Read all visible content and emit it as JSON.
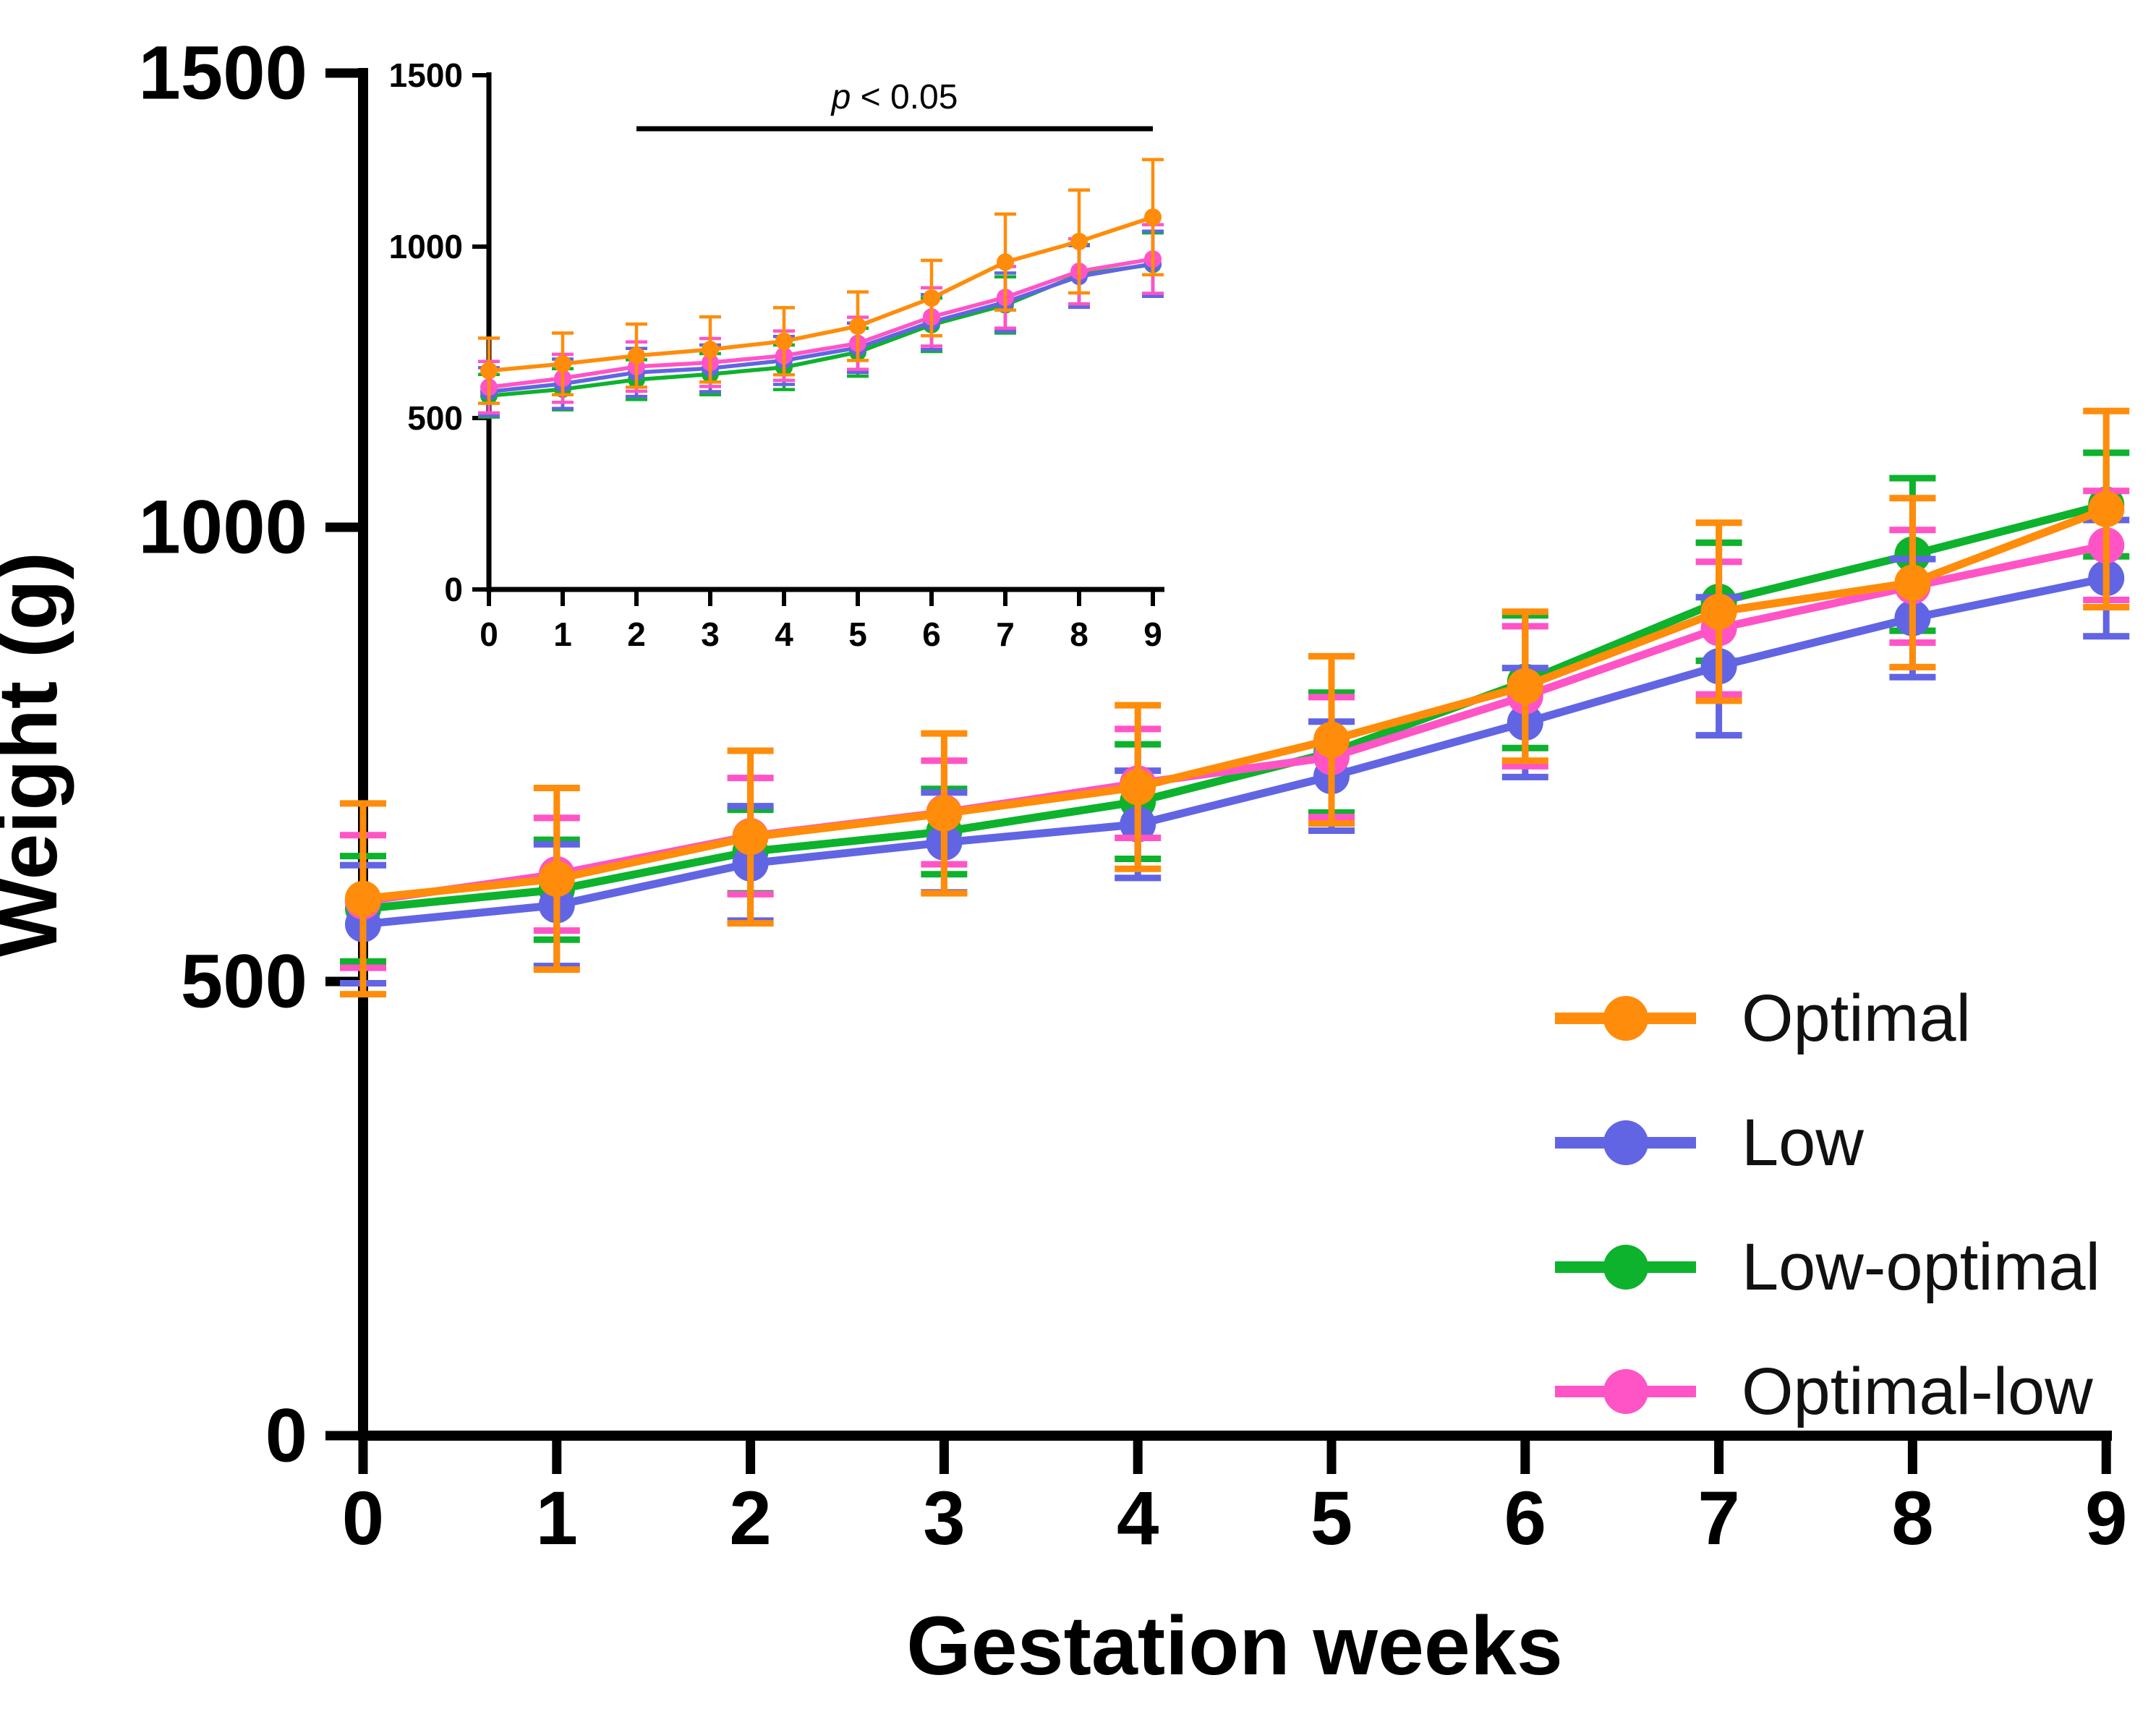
{
  "chart_data": {
    "type": "line",
    "title": "",
    "xlabel": "Gestation weeks",
    "ylabel": "Weight (g)",
    "x": [
      0,
      1,
      2,
      3,
      4,
      5,
      6,
      7,
      8,
      9
    ],
    "xticks": [
      0,
      1,
      2,
      3,
      4,
      5,
      6,
      7,
      8,
      9
    ],
    "yticks": [
      0,
      500,
      1000,
      1500
    ],
    "ylim": [
      0,
      1500
    ],
    "xlim": [
      0,
      9
    ],
    "grid": false,
    "legend_position": "right-center",
    "error_bars": "symmetric-sd",
    "series": [
      {
        "name": "Optimal",
        "color": "#FF8C0A",
        "values": [
          591,
          613,
          659,
          685,
          714,
          766,
          825,
          907,
          939,
          1020
        ],
        "sd": [
          105,
          100,
          95,
          88,
          90,
          92,
          82,
          98,
          93,
          108
        ]
      },
      {
        "name": "Low",
        "color": "#6165E3",
        "values": [
          563,
          584,
          630,
          653,
          673,
          726,
          785,
          847,
          900,
          944
        ],
        "sd": [
          65,
          67,
          63,
          55,
          59,
          60,
          60,
          76,
          65,
          64
        ]
      },
      {
        "name": "Low-optimal",
        "color": "#0DB22D",
        "values": [
          580,
          601,
          643,
          665,
          698,
          752,
          830,
          918,
          970,
          1025
        ],
        "sd": [
          58,
          55,
          46,
          47,
          63,
          66,
          73,
          65,
          84,
          57
        ]
      },
      {
        "name": "Optimal-low",
        "color": "#FF54C6",
        "values": [
          588,
          618,
          660,
          686,
          718,
          747,
          814,
          889,
          935,
          980
        ],
        "sd": [
          73,
          62,
          64,
          57,
          60,
          66,
          77,
          73,
          62,
          60
        ]
      }
    ],
    "inset": {
      "annotation": "p < 0.05",
      "annotation_x_span": [
        2,
        9
      ],
      "x": [
        0,
        1,
        2,
        3,
        4,
        5,
        6,
        7,
        8,
        9
      ],
      "xticks": [
        0,
        1,
        2,
        3,
        4,
        5,
        6,
        7,
        8,
        9
      ],
      "yticks": [
        0,
        500,
        1000,
        1500
      ],
      "ylim": [
        0,
        1500
      ],
      "series": [
        {
          "name": "Optimal",
          "values": [
            638,
            658,
            682,
            700,
            724,
            768,
            850,
            955,
            1015,
            1086
          ],
          "sd": [
            95,
            90,
            92,
            95,
            98,
            100,
            110,
            140,
            150,
            168
          ]
        },
        {
          "name": "Low",
          "values": [
            577,
            600,
            633,
            645,
            668,
            705,
            780,
            838,
            913,
            950
          ],
          "sd": [
            70,
            72,
            70,
            68,
            70,
            72,
            80,
            85,
            90,
            95
          ]
        },
        {
          "name": "Low-optimal",
          "values": [
            565,
            584,
            612,
            628,
            648,
            692,
            772,
            830,
            918,
            948
          ],
          "sd": [
            62,
            60,
            58,
            60,
            65,
            70,
            78,
            82,
            88,
            92
          ]
        },
        {
          "name": "Optimal-low",
          "values": [
            590,
            616,
            650,
            662,
            682,
            718,
            795,
            852,
            928,
            964
          ],
          "sd": [
            75,
            70,
            72,
            70,
            72,
            76,
            85,
            90,
            95,
            100
          ]
        }
      ]
    }
  }
}
